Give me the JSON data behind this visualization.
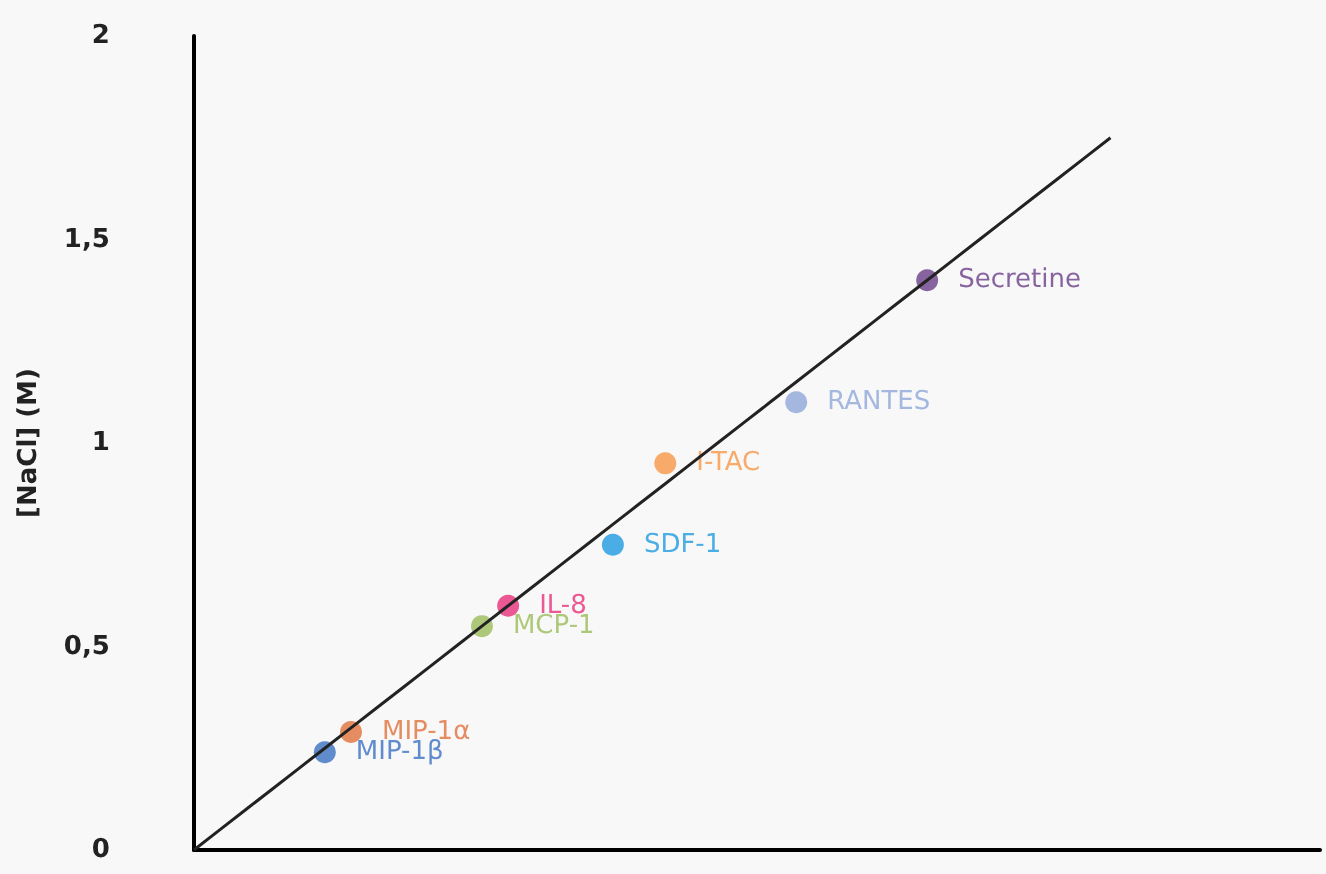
{
  "chart_data": {
    "type": "scatter",
    "ylabel": "[NaCl] (M)",
    "marker": "circle",
    "grid": false,
    "categories": [
      null,
      null,
      null,
      null,
      null,
      null,
      null,
      null,
      null,
      null,
      null,
      null,
      null,
      null,
      null,
      null,
      null,
      null,
      null,
      null,
      null,
      null,
      null,
      null,
      null,
      null,
      null,
      null,
      null,
      null,
      null,
      null,
      null,
      null,
      null,
      null,
      null,
      null,
      null,
      null,
      null,
      null,
      null,
      null
    ],
    "ylim": [
      0,
      2
    ],
    "yticks": [
      0,
      {
        "value": 0.5,
        "label": "0,5"
      },
      1,
      {
        "value": 1.5,
        "label": "1,5"
      },
      2
    ],
    "series": [
      {
        "type": "line",
        "color": "#222222",
        "marker": "none",
        "values": [
          0,
          0.05,
          0.1,
          0.15,
          0.2,
          0.25,
          0.3,
          0.35,
          0.4,
          0.45,
          0.5,
          0.55,
          0.6,
          0.65,
          0.7,
          0.75,
          0.8,
          0.85,
          0.9,
          0.95,
          1,
          1.05,
          1.1,
          1.15,
          1.2,
          1.25,
          1.3,
          1.35,
          1.4,
          1.45,
          1.5,
          1.55,
          1.6,
          1.65,
          1.7,
          1.75,
          null,
          null,
          null,
          null,
          null,
          null,
          null,
          null
        ]
      },
      {
        "name": "MIP-1β",
        "color": "#3a6fc0",
        "values": [
          null,
          null,
          null,
          null,
          null,
          0.24,
          null,
          null,
          null,
          null,
          null,
          null,
          null,
          null,
          null,
          null,
          null,
          null,
          null,
          null,
          null,
          null,
          null,
          null,
          null,
          null,
          null,
          null,
          null,
          null,
          null,
          null,
          null,
          null,
          null,
          null,
          null,
          null,
          null,
          null,
          null,
          null,
          null,
          null
        ]
      },
      {
        "name": "MIP-1α",
        "color": "#e0703a",
        "values": [
          null,
          null,
          null,
          null,
          null,
          null,
          0.29,
          null,
          null,
          null,
          null,
          null,
          null,
          null,
          null,
          null,
          null,
          null,
          null,
          null,
          null,
          null,
          null,
          null,
          null,
          null,
          null,
          null,
          null,
          null,
          null,
          null,
          null,
          null,
          null,
          null,
          null,
          null,
          null,
          null,
          null,
          null,
          null,
          null
        ]
      },
      {
        "name": "MCP-1",
        "color": "#9bbb59",
        "values": [
          null,
          null,
          null,
          null,
          null,
          null,
          null,
          null,
          null,
          null,
          null,
          0.55,
          null,
          null,
          null,
          null,
          null,
          null,
          null,
          null,
          null,
          null,
          null,
          null,
          null,
          null,
          null,
          null,
          null,
          null,
          null,
          null,
          null,
          null,
          null,
          null,
          null,
          null,
          null,
          null,
          null,
          null,
          null,
          null
        ]
      },
      {
        "name": "IL-8",
        "color": "#e8307a",
        "values": [
          null,
          null,
          null,
          null,
          null,
          null,
          null,
          null,
          null,
          null,
          null,
          null,
          0.6,
          null,
          null,
          null,
          null,
          null,
          null,
          null,
          null,
          null,
          null,
          null,
          null,
          null,
          null,
          null,
          null,
          null,
          null,
          null,
          null,
          null,
          null,
          null,
          null,
          null,
          null,
          null,
          null,
          null,
          null,
          null
        ]
      },
      {
        "name": "SDF-1",
        "color": "#1e9ae0",
        "values": [
          null,
          null,
          null,
          null,
          null,
          null,
          null,
          null,
          null,
          null,
          null,
          null,
          null,
          null,
          null,
          null,
          0.75,
          null,
          null,
          null,
          null,
          null,
          null,
          null,
          null,
          null,
          null,
          null,
          null,
          null,
          null,
          null,
          null,
          null,
          null,
          null,
          null,
          null,
          null,
          null,
          null,
          null,
          null,
          null
        ]
      },
      {
        "name": "I-TAC",
        "color": "#f79646",
        "values": [
          null,
          null,
          null,
          null,
          null,
          null,
          null,
          null,
          null,
          null,
          null,
          null,
          null,
          null,
          null,
          null,
          null,
          null,
          0.95,
          null,
          null,
          null,
          null,
          null,
          null,
          null,
          null,
          null,
          null,
          null,
          null,
          null,
          null,
          null,
          null,
          null,
          null,
          null,
          null,
          null,
          null,
          null,
          null,
          null
        ]
      },
      {
        "name": "RANTES",
        "color": "#8fa8d8",
        "values": [
          null,
          null,
          null,
          null,
          null,
          null,
          null,
          null,
          null,
          null,
          null,
          null,
          null,
          null,
          null,
          null,
          null,
          null,
          null,
          null,
          null,
          null,
          null,
          1.1,
          null,
          null,
          null,
          null,
          null,
          null,
          null,
          null,
          null,
          null,
          null,
          null,
          null,
          null,
          null,
          null,
          null,
          null,
          null,
          null
        ]
      },
      {
        "name": "Secretine",
        "color": "#6a3d8a",
        "values": [
          null,
          null,
          null,
          null,
          null,
          null,
          null,
          null,
          null,
          null,
          null,
          null,
          null,
          null,
          null,
          null,
          null,
          null,
          null,
          null,
          null,
          null,
          null,
          null,
          null,
          null,
          null,
          null,
          1.4,
          null,
          null,
          null,
          null,
          null,
          null,
          null,
          null,
          null,
          null,
          null,
          null,
          null,
          null,
          null
        ]
      }
    ]
  }
}
